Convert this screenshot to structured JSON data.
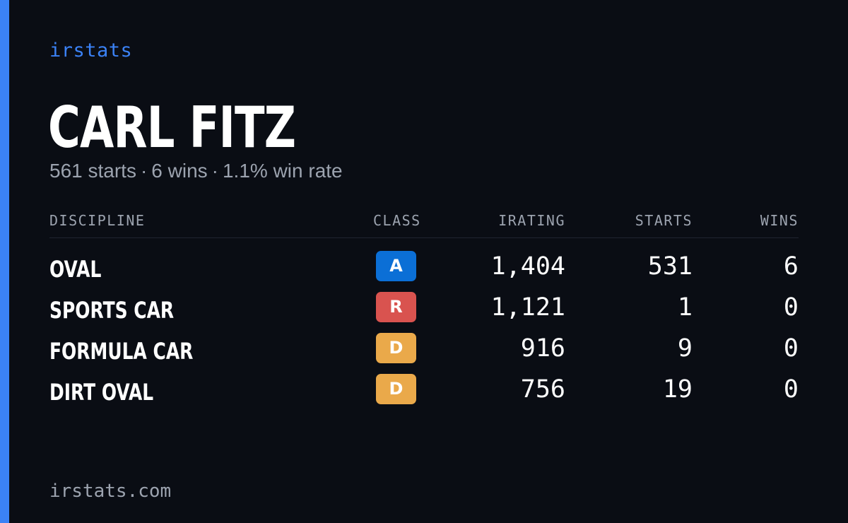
{
  "brand": "irstats",
  "driver": {
    "name": "CARL FITZ",
    "starts_text": "561 starts",
    "wins_text": "6 wins",
    "win_rate_text": "1.1% win rate",
    "separator": "·"
  },
  "table": {
    "headers": {
      "discipline": "DISCIPLINE",
      "class": "CLASS",
      "irating": "IRATING",
      "starts": "STARTS",
      "wins": "WINS"
    },
    "rows": [
      {
        "discipline": "OVAL",
        "class": "A",
        "class_color": "#0b6fd6",
        "irating": "1,404",
        "starts": "531",
        "wins": "6"
      },
      {
        "discipline": "SPORTS CAR",
        "class": "R",
        "class_color": "#d9534f",
        "irating": "1,121",
        "starts": "1",
        "wins": "0"
      },
      {
        "discipline": "FORMULA CAR",
        "class": "D",
        "class_color": "#eaa94a",
        "irating": "916",
        "starts": "9",
        "wins": "0"
      },
      {
        "discipline": "DIRT OVAL",
        "class": "D",
        "class_color": "#eaa94a",
        "irating": "756",
        "starts": "19",
        "wins": "0"
      }
    ]
  },
  "footer": "irstats.com",
  "colors": {
    "accent": "#3b82f6",
    "background": "#0a0d14",
    "muted": "#9ca3af"
  }
}
